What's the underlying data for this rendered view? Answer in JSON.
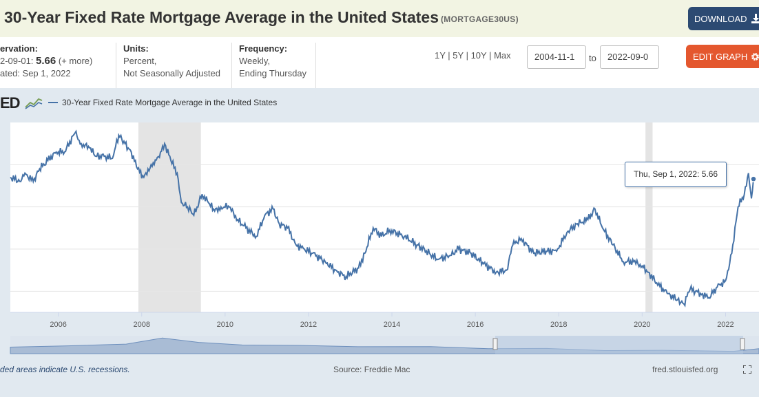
{
  "header": {
    "title": "30-Year Fixed Rate Mortgage Average in the United States",
    "series_code": "(MORTGAGE30US)",
    "download_label": "DOWNLOAD"
  },
  "info": {
    "observation_label": "ervation:",
    "observation_date": "2-09-01:",
    "observation_value": "5.66",
    "observation_more": "(+ more)",
    "updated": "ated: Sep 1, 2022",
    "units_label": "Units:",
    "units_line1": "Percent,",
    "units_line2": "Not Seasonally Adjusted",
    "frequency_label": "Frequency:",
    "frequency_line1": "Weekly,",
    "frequency_line2": "Ending Thursday"
  },
  "controls": {
    "range_1y": "1Y",
    "range_5y": "5Y",
    "range_10y": "10Y",
    "range_max": "Max",
    "start_date": "2004-11-1",
    "to_label": "to",
    "end_date": "2022-09-0",
    "edit_label": "EDIT GRAPH"
  },
  "logo_text": "ED",
  "footer": {
    "recession_note": "ded areas indicate U.S. recessions.",
    "source": "Source: Freddie Mac",
    "site": "fred.stlouisfed.org"
  },
  "tooltip": {
    "date": "Thu, Sep 1, 2022:",
    "value": "5.66"
  },
  "colors": {
    "series": "#4572a7",
    "recession": "#e4e4e4",
    "download": "#2c4a72",
    "edit": "#e4572e"
  },
  "chart_data": {
    "type": "line",
    "title": "30-Year Fixed Rate Mortgage Average in the United States",
    "series": [
      {
        "name": "30-Year Fixed Rate Mortgage Average in the United States",
        "x": [
          2004.85,
          2005.1,
          2005.2,
          2005.4,
          2005.55,
          2005.75,
          2005.95,
          2006.15,
          2006.4,
          2006.55,
          2006.75,
          2006.9,
          2007.1,
          2007.3,
          2007.45,
          2007.6,
          2007.75,
          2007.9,
          2008.05,
          2008.15,
          2008.3,
          2008.45,
          2008.55,
          2008.7,
          2008.85,
          2008.95,
          2009.1,
          2009.25,
          2009.45,
          2009.6,
          2009.75,
          2009.9,
          2010.1,
          2010.3,
          2010.5,
          2010.75,
          2010.95,
          2011.15,
          2011.3,
          2011.5,
          2011.7,
          2011.9,
          2012.1,
          2012.4,
          2012.7,
          2012.9,
          2013.2,
          2013.35,
          2013.55,
          2013.75,
          2013.95,
          2014.3,
          2014.6,
          2014.9,
          2015.1,
          2015.4,
          2015.6,
          2015.9,
          2016.2,
          2016.5,
          2016.75,
          2016.9,
          2017.1,
          2017.4,
          2017.7,
          2017.95,
          2018.2,
          2018.45,
          2018.7,
          2018.87,
          2019.05,
          2019.3,
          2019.55,
          2019.8,
          2020.0,
          2020.15,
          2020.35,
          2020.6,
          2020.85,
          2021.0,
          2021.15,
          2021.4,
          2021.6,
          2021.8,
          2022.0,
          2022.15,
          2022.3,
          2022.45,
          2022.55,
          2022.62,
          2022.67
        ],
        "y": [
          5.7,
          5.6,
          5.8,
          5.6,
          5.9,
          6.1,
          6.3,
          6.3,
          6.75,
          6.5,
          6.4,
          6.2,
          6.2,
          6.15,
          6.7,
          6.5,
          6.3,
          5.9,
          5.7,
          5.9,
          6.0,
          6.3,
          6.5,
          6.1,
          5.8,
          5.1,
          5.0,
          4.8,
          5.3,
          5.1,
          4.9,
          5.0,
          5.0,
          4.7,
          4.5,
          4.3,
          4.8,
          4.95,
          4.6,
          4.5,
          4.1,
          4.0,
          3.9,
          3.7,
          3.45,
          3.35,
          3.55,
          3.9,
          4.5,
          4.3,
          4.45,
          4.3,
          4.1,
          3.9,
          3.75,
          3.85,
          4.0,
          3.9,
          3.65,
          3.45,
          3.5,
          4.1,
          4.25,
          3.9,
          3.95,
          3.95,
          4.4,
          4.6,
          4.7,
          4.95,
          4.5,
          4.1,
          3.7,
          3.7,
          3.6,
          3.45,
          3.2,
          2.95,
          2.8,
          2.7,
          3.05,
          2.95,
          2.85,
          3.1,
          3.25,
          3.9,
          5.0,
          5.3,
          5.8,
          5.2,
          5.66
        ]
      }
    ],
    "xlim": [
      2004.85,
      2022.67
    ],
    "ylim": [
      2.5,
      7.0
    ],
    "xticks": [
      "2006",
      "2008",
      "2010",
      "2012",
      "2014",
      "2016",
      "2018",
      "2020",
      "2022"
    ],
    "recessions": [
      [
        2007.92,
        2009.42
      ],
      [
        2020.08,
        2020.25
      ]
    ],
    "grid": true,
    "legend": "top-left"
  }
}
